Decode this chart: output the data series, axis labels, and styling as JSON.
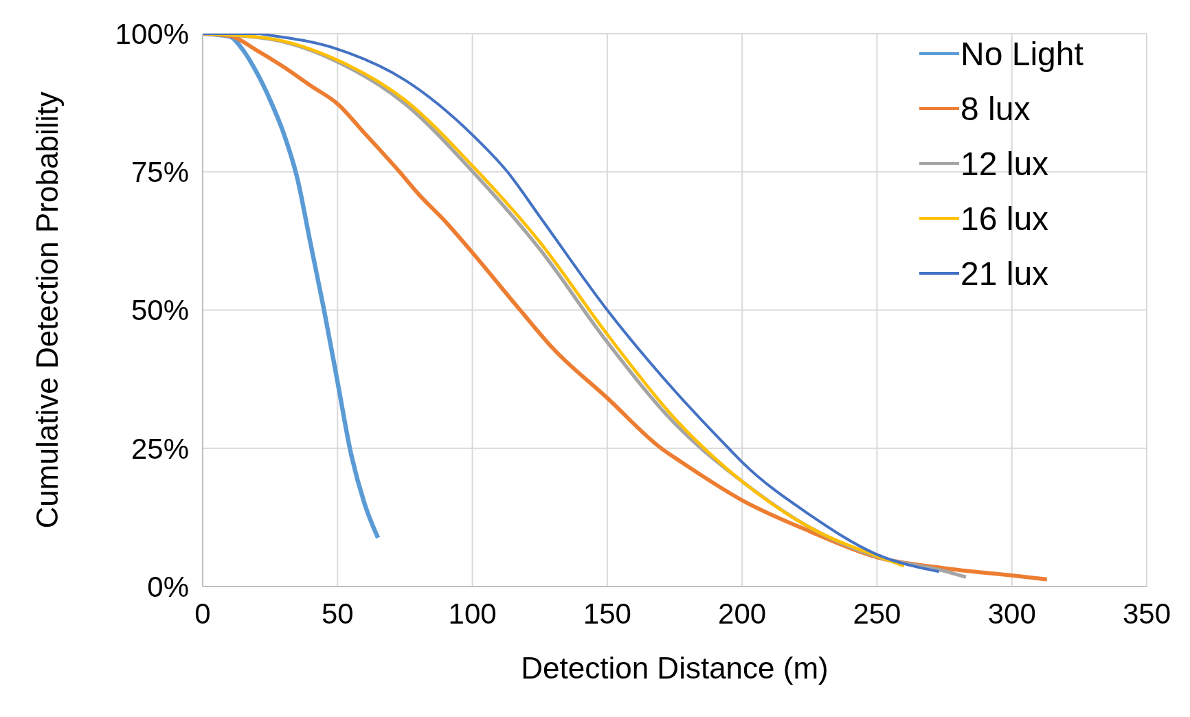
{
  "chart_data": {
    "type": "line",
    "xlabel": "Detection Distance (m)",
    "ylabel": "Cumulative Detection Probability",
    "xlim": [
      0,
      350
    ],
    "xticks": [
      0,
      50,
      100,
      150,
      200,
      250,
      300,
      350
    ],
    "ylim": [
      0,
      100
    ],
    "yticks": [
      {
        "value": 0,
        "label": "0%"
      },
      {
        "value": 25,
        "label": "25%"
      },
      {
        "value": 50,
        "label": "50%"
      },
      {
        "value": 75,
        "label": "75%"
      },
      {
        "value": 100,
        "label": "100%"
      }
    ],
    "grid": true,
    "legend": "top right",
    "series": [
      {
        "name": "No Light",
        "color": "#5b9bd5",
        "x": [
          0,
          10,
          15,
          20,
          25,
          30,
          35,
          40,
          45,
          50,
          55,
          60,
          65
        ],
        "values": [
          100,
          99.5,
          97,
          93,
          88,
          82,
          74,
          62,
          50,
          37,
          24,
          15,
          8.8
        ]
      },
      {
        "name": "8 lux",
        "color": "#ed7d31",
        "x": [
          0,
          10,
          20,
          30,
          40,
          50,
          60,
          73,
          80,
          90,
          100,
          117.7,
          130,
          150,
          170,
          177.5,
          200,
          225,
          250,
          275,
          300,
          313
        ],
        "values": [
          100,
          99.6,
          97,
          94,
          90.6,
          87.3,
          82,
          75,
          71,
          66,
          60.4,
          50,
          43,
          34.1,
          25,
          22.5,
          15.6,
          10,
          5.3,
          3.3,
          2,
          1.3
        ]
      },
      {
        "name": "12 lux",
        "color": "#a5a5a5",
        "x": [
          0,
          25,
          50,
          75,
          100,
          125,
          150,
          175,
          200,
          225,
          250,
          275,
          283
        ],
        "values": [
          100,
          99,
          94.9,
          87.3,
          75.1,
          61,
          44.2,
          29.5,
          19,
          10.7,
          5.4,
          2.8,
          1.7
        ]
      },
      {
        "name": "16 lux",
        "color": "#ffc000",
        "x": [
          0,
          25,
          50,
          75,
          100,
          125,
          150,
          175,
          200,
          225,
          250,
          260
        ],
        "values": [
          100,
          99.1,
          95.2,
          88,
          76.1,
          62.3,
          45.6,
          30.4,
          19,
          10.7,
          5.5,
          3.7
        ]
      },
      {
        "name": "21 lux",
        "color": "#4472c4",
        "x": [
          0,
          20,
          25,
          50,
          75,
          100,
          113,
          125,
          150,
          175,
          195,
          200,
          225,
          250,
          273
        ],
        "values": [
          100,
          100,
          99.7,
          97.2,
          91.6,
          81.7,
          75,
          66.9,
          50,
          35.4,
          25,
          22.5,
          13,
          5.8,
          2.7
        ]
      }
    ]
  }
}
